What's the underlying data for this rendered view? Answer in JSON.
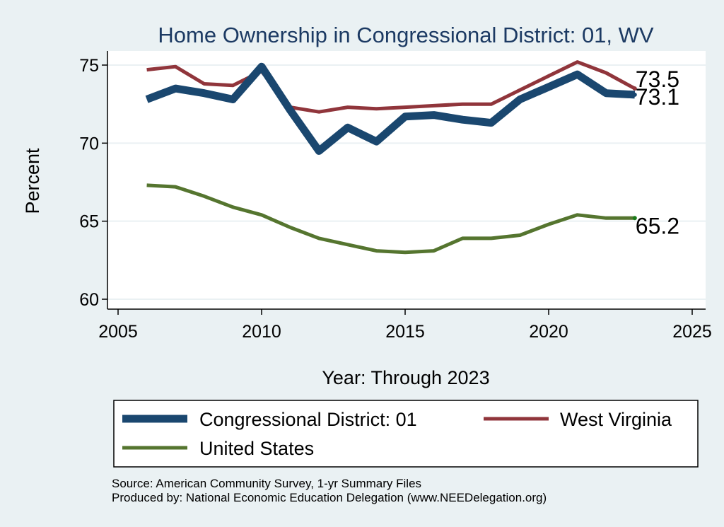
{
  "chart_data": {
    "type": "line",
    "title": "Home Ownership in Congressional District:  01, WV",
    "xlabel": "Year: Through 2023",
    "ylabel": "Percent",
    "xlim": [
      2005,
      2025
    ],
    "ylim": [
      60,
      75
    ],
    "x_ticks": [
      2005,
      2010,
      2015,
      2020,
      2025
    ],
    "y_ticks": [
      60,
      65,
      70,
      75
    ],
    "grid": true,
    "x": [
      2006,
      2007,
      2008,
      2009,
      2010,
      2011,
      2012,
      2013,
      2014,
      2015,
      2016,
      2017,
      2018,
      2019,
      2020,
      2021,
      2022,
      2023
    ],
    "series": [
      {
        "name": "Congressional District:  01",
        "color": "#1a476f",
        "values": [
          72.8,
          73.5,
          73.2,
          72.8,
          74.9,
          72.1,
          69.5,
          71.0,
          70.1,
          71.7,
          71.8,
          71.5,
          71.3,
          72.8,
          73.6,
          74.4,
          73.2,
          73.1
        ],
        "end_label": "73.1"
      },
      {
        "name": "West Virginia",
        "color": "#90353b",
        "values": [
          74.7,
          74.9,
          73.8,
          73.7,
          74.6,
          72.3,
          72.0,
          72.3,
          72.2,
          72.3,
          72.4,
          72.5,
          72.5,
          73.4,
          74.3,
          75.2,
          74.5,
          73.5
        ],
        "end_label": "73.5"
      },
      {
        "name": "United States",
        "color": "#55752f",
        "values": [
          67.3,
          67.2,
          66.6,
          65.9,
          65.4,
          64.6,
          63.9,
          63.5,
          63.1,
          63.0,
          63.1,
          63.9,
          63.9,
          64.1,
          64.8,
          65.4,
          65.2,
          65.2
        ],
        "end_label": "65.2"
      }
    ],
    "legend": {
      "placement": "bottom",
      "entries": [
        "Congressional District:  01",
        "West Virginia",
        "United States"
      ]
    },
    "notes": [
      "Source: American Community Survey, 1-yr Summary Files",
      "Produced by: National Economic Education Delegation (www.NEEDelegation.org)"
    ]
  }
}
